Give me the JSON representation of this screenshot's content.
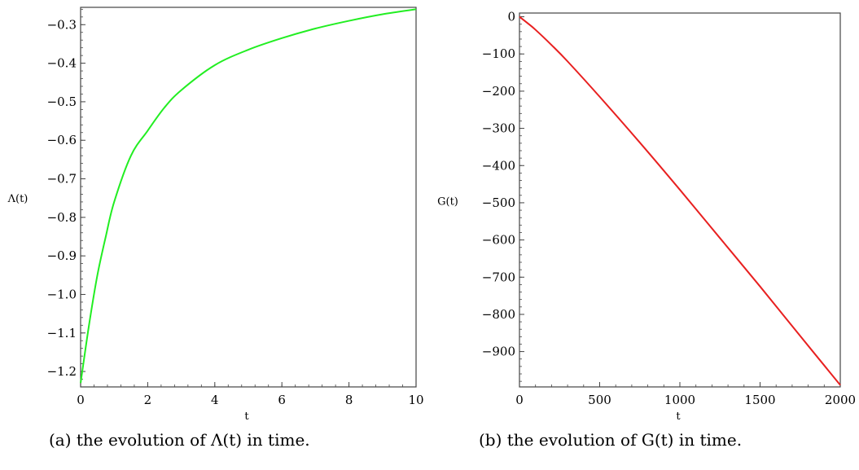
{
  "chart_data": [
    {
      "type": "line",
      "xlabel": "t",
      "ylabel": "Λ(t)",
      "xlim": [
        0,
        10
      ],
      "ylim": [
        -1.24,
        -0.255
      ],
      "xticks": [
        0,
        2,
        4,
        6,
        8,
        10
      ],
      "yticks": [
        -0.3,
        -0.4,
        -0.5,
        -0.6,
        -0.7,
        -0.8,
        -0.9,
        -1.0,
        -1.1,
        -1.2
      ],
      "ytick_labels": [
        "−0.3",
        "−0.4",
        "−0.5",
        "−0.6",
        "−0.7",
        "−0.8",
        "−0.9",
        "−1.0",
        "−1.1",
        "−1.2"
      ],
      "grid": false,
      "series": [
        {
          "color": "#22ee22",
          "x": [
            0,
            0.25,
            0.5,
            0.75,
            1,
            1.5,
            2,
            2.5,
            3,
            4,
            5,
            6,
            7,
            8,
            9,
            10
          ],
          "y": [
            -1.23,
            -1.08,
            -0.95,
            -0.85,
            -0.76,
            -0.64,
            -0.575,
            -0.515,
            -0.47,
            -0.405,
            -0.365,
            -0.335,
            -0.31,
            -0.29,
            -0.273,
            -0.26
          ]
        }
      ]
    },
    {
      "type": "line",
      "xlabel": "t",
      "ylabel": "G(t)",
      "xlim": [
        0,
        2000
      ],
      "ylim": [
        -995,
        10
      ],
      "xticks": [
        0,
        500,
        1000,
        1500,
        2000
      ],
      "yticks": [
        0,
        -100,
        -200,
        -300,
        -400,
        -500,
        -600,
        -700,
        -800,
        -900
      ],
      "ytick_labels": [
        "0",
        "−100",
        "−200",
        "−300",
        "−400",
        "−500",
        "−600",
        "−700",
        "−800",
        "−900"
      ],
      "grid": false,
      "series": [
        {
          "color": "#e82020",
          "x": [
            0,
            50,
            100,
            200,
            300,
            500,
            750,
            1000,
            1250,
            1500,
            1750,
            2000
          ],
          "y": [
            0,
            -17,
            -35,
            -76,
            -120,
            -215,
            -338,
            -465,
            -595,
            -725,
            -858,
            -990
          ]
        }
      ]
    }
  ],
  "captions": {
    "a": "(a) the evolution of Λ(t) in time.",
    "b": "(b) the evolution of G(t) in time."
  }
}
